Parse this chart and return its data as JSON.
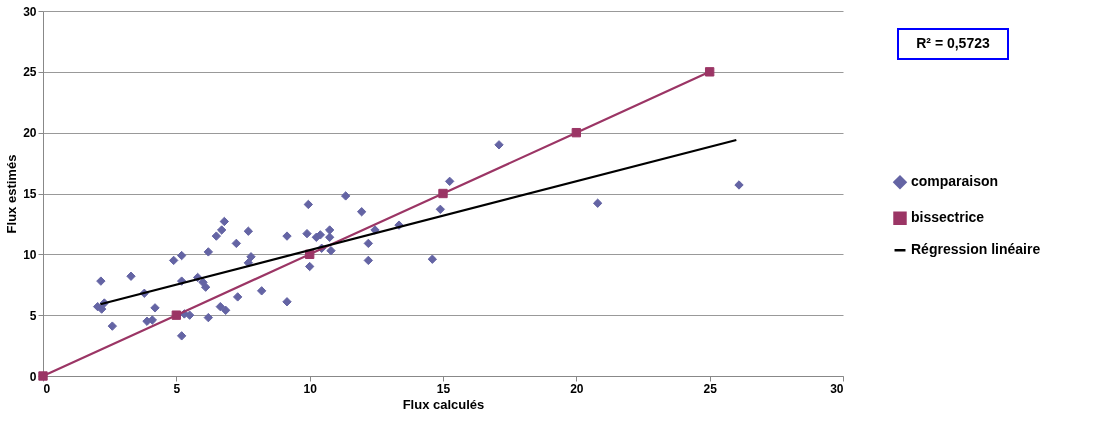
{
  "chart_data": {
    "type": "scatter",
    "xlabel": "Flux calculés",
    "ylabel": "Flux estimés",
    "xlim": [
      0,
      30
    ],
    "xticks": [
      0,
      5,
      10,
      15,
      20,
      25,
      30
    ],
    "ylim": [
      0,
      30
    ],
    "yticks": [
      0,
      5,
      10,
      15,
      20,
      25,
      30
    ],
    "grid": "y",
    "legend": "right",
    "annotations": [
      "R² = 0,5723"
    ],
    "series": [
      {
        "name": "comparaison",
        "marker": "diamond",
        "color": "#6464a4",
        "x": [
          2.17,
          2.05,
          2.2,
          2.3,
          2.6,
          3.3,
          3.8,
          3.9,
          4.1,
          4.2,
          4.9,
          5.2,
          5.2,
          5.3,
          5.5,
          5.2,
          5.8,
          6.0,
          6.1,
          6.2,
          6.2,
          6.65,
          6.85,
          6.5,
          6.7,
          6.8,
          7.25,
          7.3,
          7.7,
          7.7,
          7.8,
          8.2,
          9.15,
          9.15,
          9.95,
          9.9,
          10.0,
          10.25,
          10.4,
          10.45,
          10.75,
          10.75,
          10.8,
          11.35,
          11.95,
          12.2,
          12.2,
          12.45,
          13.35,
          14.6,
          14.9,
          15.25,
          17.1,
          20.8,
          26.1
        ],
        "values": [
          7.8,
          5.7,
          5.5,
          6.0,
          4.1,
          8.2,
          6.8,
          4.5,
          4.6,
          5.6,
          9.5,
          9.9,
          7.8,
          5.1,
          5.0,
          3.3,
          8.1,
          7.7,
          7.3,
          4.8,
          10.2,
          5.7,
          5.4,
          11.5,
          12.0,
          12.7,
          10.9,
          6.5,
          9.3,
          11.9,
          9.8,
          7.0,
          11.5,
          6.1,
          14.1,
          11.7,
          9.0,
          11.4,
          11.6,
          10.5,
          12.0,
          11.4,
          10.3,
          14.8,
          13.5,
          10.9,
          9.5,
          12.0,
          12.4,
          9.6,
          13.7,
          16.0,
          19.0,
          14.2,
          15.7
        ]
      },
      {
        "name": "bissectrice",
        "type": "line",
        "marker": "square",
        "line_style": "solid",
        "color": "#9b3565",
        "x": [
          0,
          5,
          10,
          15,
          20,
          25
        ],
        "values": [
          0,
          5,
          10,
          15,
          20,
          25
        ]
      },
      {
        "name": "Régression linéaire",
        "type": "line",
        "marker": "none",
        "line_style": "solid",
        "color": "#000000",
        "x": [
          2.15,
          26.0
        ],
        "values": [
          5.9,
          19.4
        ]
      }
    ]
  }
}
